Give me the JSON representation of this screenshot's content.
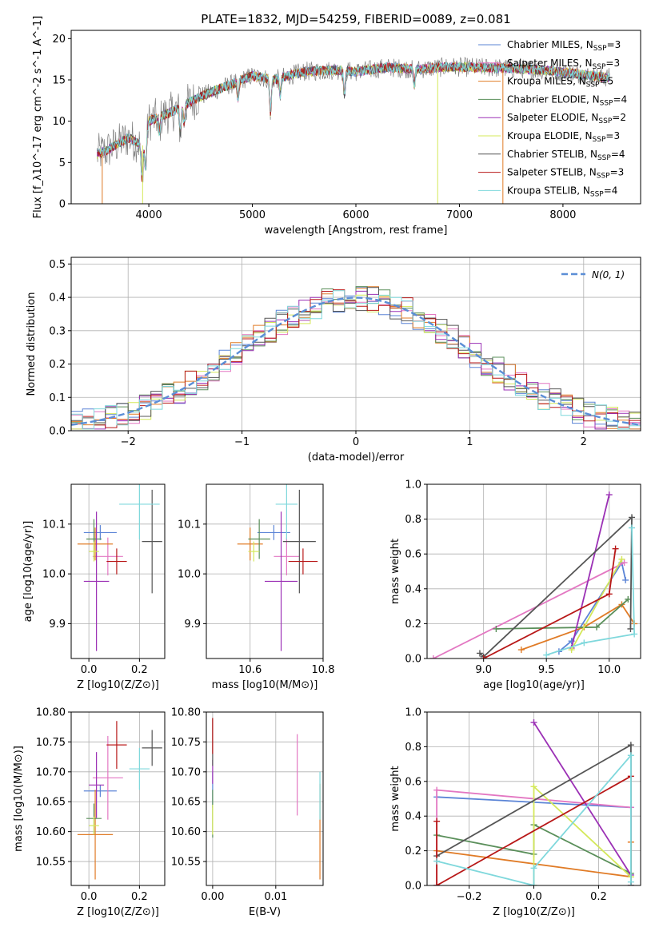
{
  "colors": {
    "chabrier_miles": "#5b84d6",
    "salpeter_miles": "#e377c2",
    "kroupa_miles": "#e07b26",
    "chabrier_elodie": "#5a8f5a",
    "salpeter_elodie": "#9b30b5",
    "kroupa_elodie": "#d4e85a",
    "chabrier_stelib": "#555555",
    "salpeter_stelib": "#b81818",
    "kroupa_stelib": "#7fd8dc",
    "normal_curve": "#5b8ed6",
    "grid": "#b0b0b0"
  },
  "chart_data": [
    {
      "id": "spectrum",
      "type": "line",
      "title": "PLATE=1832, MJD=54259, FIBERID=0089, z=0.081",
      "xlabel": "wavelength [Angstrom, rest frame]",
      "ylabel": "Flux [f_λ10^-17 erg cm^-2 s^-1 A^-1]",
      "xlim": [
        3250,
        8750
      ],
      "ylim": [
        0,
        21
      ],
      "xticks": [
        "4000",
        "5000",
        "6000",
        "7000",
        "8000"
      ],
      "yticks": [
        "0",
        "5",
        "10",
        "15",
        "20"
      ],
      "legend_position": "top-right",
      "legend": [
        {
          "model": "Chabrier MILES",
          "n": "3"
        },
        {
          "model": "Salpeter MILES",
          "n": "3"
        },
        {
          "model": "Kroupa MILES",
          "n": "5"
        },
        {
          "model": "Chabrier ELODIE",
          "n": "4"
        },
        {
          "model": "Salpeter ELODIE",
          "n": "2"
        },
        {
          "model": "Kroupa ELODIE",
          "n": "3"
        },
        {
          "model": "Chabrier STELIB",
          "n": "4"
        },
        {
          "model": "Salpeter STELIB",
          "n": "3"
        },
        {
          "model": "Kroupa STELIB",
          "n": "4"
        }
      ],
      "continuum_points": [
        [
          3500,
          6
        ],
        [
          3600,
          6.5
        ],
        [
          3800,
          8
        ],
        [
          3950,
          7
        ],
        [
          4000,
          10
        ],
        [
          4200,
          11
        ],
        [
          4500,
          13
        ],
        [
          4800,
          14.5
        ],
        [
          5000,
          15.5
        ],
        [
          5200,
          15
        ],
        [
          5500,
          16
        ],
        [
          5800,
          16.2
        ],
        [
          6000,
          16
        ],
        [
          6300,
          16.5
        ],
        [
          6600,
          16.3
        ],
        [
          6900,
          16.6
        ],
        [
          7200,
          16.5
        ],
        [
          7500,
          16.4
        ],
        [
          7800,
          16.2
        ],
        [
          8100,
          15.8
        ],
        [
          8400,
          15.3
        ]
      ]
    },
    {
      "id": "residuals",
      "type": "line",
      "xlabel": "(data-model)/error",
      "ylabel": "Normed distribution",
      "xlim": [
        -2.5,
        2.5
      ],
      "ylim": [
        0,
        0.52
      ],
      "xticks": [
        "−2",
        "−1",
        "0",
        "1",
        "2"
      ],
      "yticks": [
        "0.0",
        "0.1",
        "0.2",
        "0.3",
        "0.4",
        "0.5"
      ],
      "legend_position": "top-right",
      "legend": [
        "N(0, 1)"
      ],
      "bin_width": 0.1,
      "bin_start": -2.5
    },
    {
      "id": "z_age",
      "type": "scatter",
      "xlabel": "Z [log10(Z/Z⊙)]",
      "ylabel": "age [log10(age/yr)]",
      "xlim": [
        -0.07,
        0.3
      ],
      "ylim": [
        9.83,
        10.18
      ],
      "xticks": [
        "0.0",
        "0.2"
      ],
      "yticks": [
        "9.9",
        "10.0",
        "10.1"
      ],
      "points": [
        {
          "x": 0.045,
          "y": 10.083,
          "xerr": 0.065,
          "yerr": 0.015
        },
        {
          "x": 0.075,
          "y": 10.035,
          "xerr": 0.06,
          "yerr": 0.038
        },
        {
          "x": 0.025,
          "y": 10.06,
          "xerr": 0.07,
          "yerr": 0.033
        },
        {
          "x": 0.02,
          "y": 10.07,
          "xerr": 0.03,
          "yerr": 0.04
        },
        {
          "x": 0.03,
          "y": 9.985,
          "xerr": 0.05,
          "yerr": 0.14
        },
        {
          "x": 0.02,
          "y": 10.045,
          "xerr": 0.02,
          "yerr": 0.02
        },
        {
          "x": 0.25,
          "y": 10.065,
          "xerr": 0.04,
          "yerr": 0.104
        },
        {
          "x": 0.11,
          "y": 10.025,
          "xerr": 0.04,
          "yerr": 0.026
        },
        {
          "x": 0.2,
          "y": 10.14,
          "xerr": 0.08,
          "yerr": 0.071
        }
      ]
    },
    {
      "id": "mass_age",
      "type": "scatter",
      "xlabel": "mass [log10(M/M⊙)]",
      "ylabel": "",
      "xlim": [
        10.48,
        10.8
      ],
      "ylim": [
        9.83,
        10.18
      ],
      "xticks": [
        "10.6",
        "10.8"
      ],
      "yticks": [
        "9.9",
        "10.0",
        "10.1"
      ],
      "points": [
        {
          "x": 10.665,
          "y": 10.083,
          "xerr": 0.045,
          "yerr": 0.015
        },
        {
          "x": 10.7,
          "y": 10.035,
          "xerr": 0.035,
          "yerr": 0.038
        },
        {
          "x": 10.6,
          "y": 10.06,
          "xerr": 0.035,
          "yerr": 0.033
        },
        {
          "x": 10.625,
          "y": 10.07,
          "xerr": 0.03,
          "yerr": 0.04
        },
        {
          "x": 10.685,
          "y": 9.985,
          "xerr": 0.045,
          "yerr": 0.14
        },
        {
          "x": 10.61,
          "y": 10.045,
          "xerr": 0.015,
          "yerr": 0.02
        },
        {
          "x": 10.735,
          "y": 10.065,
          "xerr": 0.045,
          "yerr": 0.104
        },
        {
          "x": 10.745,
          "y": 10.025,
          "xerr": 0.04,
          "yerr": 0.026
        },
        {
          "x": 10.7,
          "y": 10.14,
          "xerr": 0.03,
          "yerr": 0.071
        }
      ]
    },
    {
      "id": "age_weight",
      "type": "line",
      "xlabel": "age [log10(age/yr)]",
      "ylabel": "mass weight",
      "xlim": [
        8.55,
        10.25
      ],
      "ylim": [
        0,
        1
      ],
      "xticks": [
        "9.0",
        "9.5",
        "10.0"
      ],
      "yticks": [
        "0.0",
        "0.2",
        "0.4",
        "0.6",
        "0.8",
        "1.0"
      ],
      "series": [
        {
          "x": [
            9.6,
            9.7,
            10.1,
            10.13
          ],
          "y": [
            0.04,
            0.1,
            0.55,
            0.45
          ]
        },
        {
          "x": [
            8.6,
            10.12
          ],
          "y": [
            0.0,
            0.55
          ]
        },
        {
          "x": [
            9.3,
            9.8,
            10.1,
            10.2
          ],
          "y": [
            0.05,
            0.18,
            0.31,
            0.2
          ]
        },
        {
          "x": [
            9.1,
            9.9,
            10.15
          ],
          "y": [
            0.17,
            0.18,
            0.34
          ]
        },
        {
          "x": [
            9.7,
            10.0
          ],
          "y": [
            0.06,
            0.94
          ]
        },
        {
          "x": [
            9.7,
            10.1
          ],
          "y": [
            0.05,
            0.57
          ]
        },
        {
          "x": [
            8.97,
            9.0,
            10.18,
            10.17
          ],
          "y": [
            0.03,
            0.01,
            0.81,
            0.17
          ]
        },
        {
          "x": [
            9.0,
            10.0,
            10.05
          ],
          "y": [
            0.0,
            0.37,
            0.63
          ]
        },
        {
          "x": [
            9.5,
            9.8,
            10.2,
            10.18
          ],
          "y": [
            0.02,
            0.09,
            0.14,
            0.75
          ]
        }
      ]
    },
    {
      "id": "z_mass",
      "type": "scatter",
      "xlabel": "Z [log10(Z/Z⊙)]",
      "ylabel": "mass [log10(M/M⊙)]",
      "xlim": [
        -0.07,
        0.3
      ],
      "ylim": [
        10.51,
        10.8
      ],
      "xticks": [
        "0.0",
        "0.2"
      ],
      "yticks": [
        "10.55",
        "10.60",
        "10.65",
        "10.70",
        "10.75",
        "10.80"
      ],
      "points": [
        {
          "x": 0.045,
          "y": 10.668,
          "xerr": 0.065,
          "yerr": 0.01
        },
        {
          "x": 0.075,
          "y": 10.69,
          "xerr": 0.06,
          "yerr": 0.07
        },
        {
          "x": 0.025,
          "y": 10.595,
          "xerr": 0.07,
          "yerr": 0.075
        },
        {
          "x": 0.02,
          "y": 10.622,
          "xerr": 0.03,
          "yerr": 0.025
        },
        {
          "x": 0.03,
          "y": 10.678,
          "xerr": 0.03,
          "yerr": 0.055
        },
        {
          "x": 0.02,
          "y": 10.61,
          "xerr": 0.02,
          "yerr": 0.015
        },
        {
          "x": 0.25,
          "y": 10.74,
          "xerr": 0.04,
          "yerr": 0.03
        },
        {
          "x": 0.11,
          "y": 10.745,
          "xerr": 0.04,
          "yerr": 0.04
        },
        {
          "x": 0.2,
          "y": 10.705,
          "xerr": 0.04,
          "yerr": 0.035
        }
      ]
    },
    {
      "id": "ebv_mass",
      "type": "scatter",
      "xlabel": "E(B-V)",
      "ylabel": "",
      "xlim": [
        -0.001,
        0.0175
      ],
      "ylim": [
        10.51,
        10.8
      ],
      "xticks": [
        "0.00",
        "0.01"
      ],
      "yticks": [
        "10.55",
        "10.60",
        "10.65",
        "10.70",
        "10.75",
        "10.80"
      ],
      "points": [
        {
          "x": 0.0,
          "y": 10.67,
          "xerr": 0,
          "yerr": 0.03
        },
        {
          "x": 0.0134,
          "y": 10.695,
          "xerr": 0,
          "yerr": 0.068
        },
        {
          "x": 0.017,
          "y": 10.6,
          "xerr": 0,
          "yerr": 0.08
        },
        {
          "x": 0.0,
          "y": 10.63,
          "xerr": 0,
          "yerr": 0.04
        },
        {
          "x": 0.0,
          "y": 10.7,
          "xerr": 0,
          "yerr": 0.02
        },
        {
          "x": 0.0,
          "y": 10.62,
          "xerr": 0,
          "yerr": 0.025
        },
        {
          "x": 0.0,
          "y": 10.75,
          "xerr": 0,
          "yerr": 0.04
        },
        {
          "x": 0.0,
          "y": 10.76,
          "xerr": 0,
          "yerr": 0.03
        },
        {
          "x": 0.017,
          "y": 10.66,
          "xerr": 0,
          "yerr": 0.04
        }
      ]
    },
    {
      "id": "z_weight",
      "type": "line",
      "xlabel": "Z [log10(Z/Z⊙)]",
      "ylabel": "mass weight",
      "xlim": [
        -0.33,
        0.33
      ],
      "ylim": [
        0,
        1
      ],
      "xticks": [
        "−0.2",
        "0.0",
        "0.2"
      ],
      "yticks": [
        "0.0",
        "0.2",
        "0.4",
        "0.6",
        "0.8",
        "1.0"
      ],
      "series": [
        {
          "x": [
            -0.3,
            0.3
          ],
          "y": [
            0.51,
            0.45
          ]
        },
        {
          "x": [
            -0.3,
            -0.3,
            0.3,
            0.3
          ],
          "y": [
            0.0,
            0.55,
            0.45,
            0.0
          ]
        },
        {
          "x": [
            -0.3,
            0.3,
            0.3
          ],
          "y": [
            0.2,
            0.05,
            0.25
          ]
        },
        {
          "x": [
            -0.3,
            0.0,
            0.0,
            0.3
          ],
          "y": [
            0.29,
            0.18,
            0.35,
            0.07
          ]
        },
        {
          "x": [
            0.0,
            0.3
          ],
          "y": [
            0.94,
            0.06
          ]
        },
        {
          "x": [
            0.0,
            0.0,
            0.3
          ],
          "y": [
            0.0,
            0.57,
            0.05
          ]
        },
        {
          "x": [
            -0.3,
            0.3,
            0.3
          ],
          "y": [
            0.17,
            0.81,
            0.0
          ]
        },
        {
          "x": [
            -0.3,
            -0.3,
            0.3
          ],
          "y": [
            0.37,
            0.0,
            0.63
          ]
        },
        {
          "x": [
            -0.3,
            0.0,
            0.0,
            0.3,
            0.3
          ],
          "y": [
            0.14,
            0.0,
            0.1,
            0.75,
            0.02
          ]
        }
      ]
    }
  ]
}
